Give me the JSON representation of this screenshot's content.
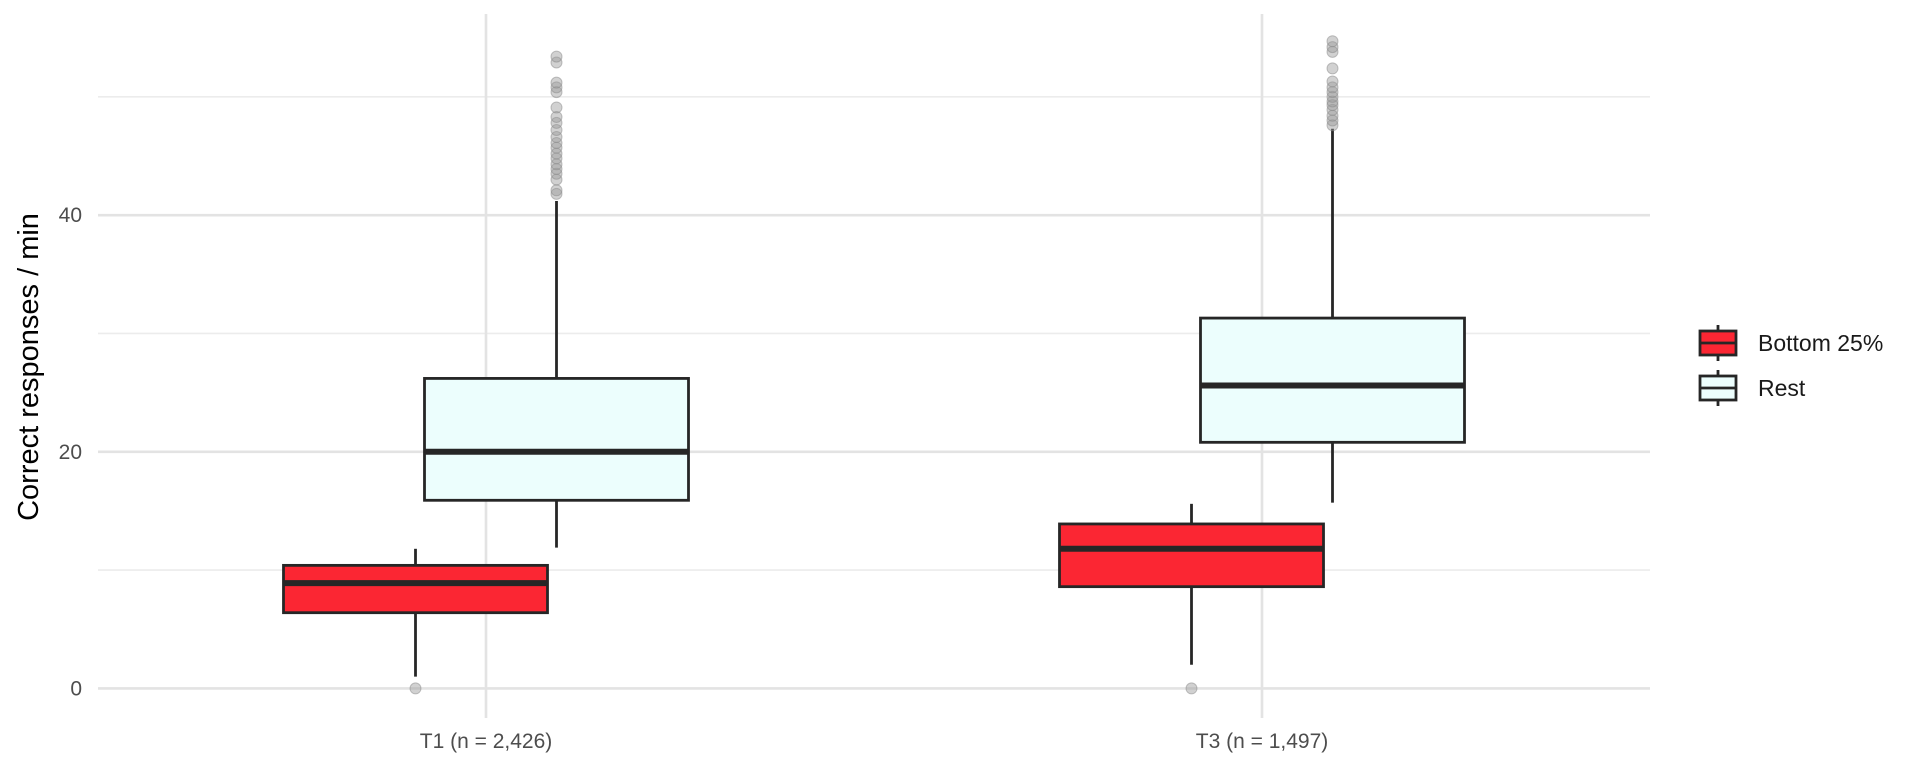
{
  "chart_data": {
    "type": "box",
    "title": "",
    "xlabel": "",
    "ylabel": "Correct responses / min",
    "ylim": [
      -2.5,
      57
    ],
    "y_ticks": [
      0,
      20,
      40
    ],
    "y_minor_ticks": [
      10,
      30,
      50
    ],
    "grid": true,
    "legend_position": "right",
    "categories": [
      "T1 (n = 2,426)",
      "T3 (n = 1,497)"
    ],
    "series": [
      {
        "name": "Bottom 25%",
        "color": "#fb2633",
        "boxes": [
          {
            "whisker_low": 1.0,
            "q1": 6.4,
            "median": 8.9,
            "q3": 10.4,
            "whisker_high": 11.8,
            "outliers": [
              0
            ]
          },
          {
            "whisker_low": 2.0,
            "q1": 8.6,
            "median": 11.8,
            "q3": 13.9,
            "whisker_high": 15.6,
            "outliers": [
              0
            ]
          }
        ]
      },
      {
        "name": "Rest",
        "color": "#ecfefd",
        "boxes": [
          {
            "whisker_low": 11.9,
            "q1": 15.9,
            "median": 20.0,
            "q3": 26.2,
            "whisker_high": 41.2,
            "outliers": [
              41.8,
              42.1,
              43.0,
              43.5,
              43.9,
              44.3,
              44.8,
              45.2,
              45.7,
              46.1,
              46.6,
              47.2,
              47.8,
              48.3,
              49.1,
              50.4,
              50.8,
              51.2,
              52.9,
              53.4
            ]
          },
          {
            "whisker_low": 15.7,
            "q1": 20.8,
            "median": 25.6,
            "q3": 31.3,
            "whisker_high": 47.3,
            "outliers": [
              47.6,
              48.0,
              48.4,
              48.9,
              49.3,
              49.6,
              50.0,
              50.4,
              50.8,
              51.3,
              52.4,
              53.8,
              54.2,
              54.7
            ]
          }
        ]
      }
    ]
  }
}
